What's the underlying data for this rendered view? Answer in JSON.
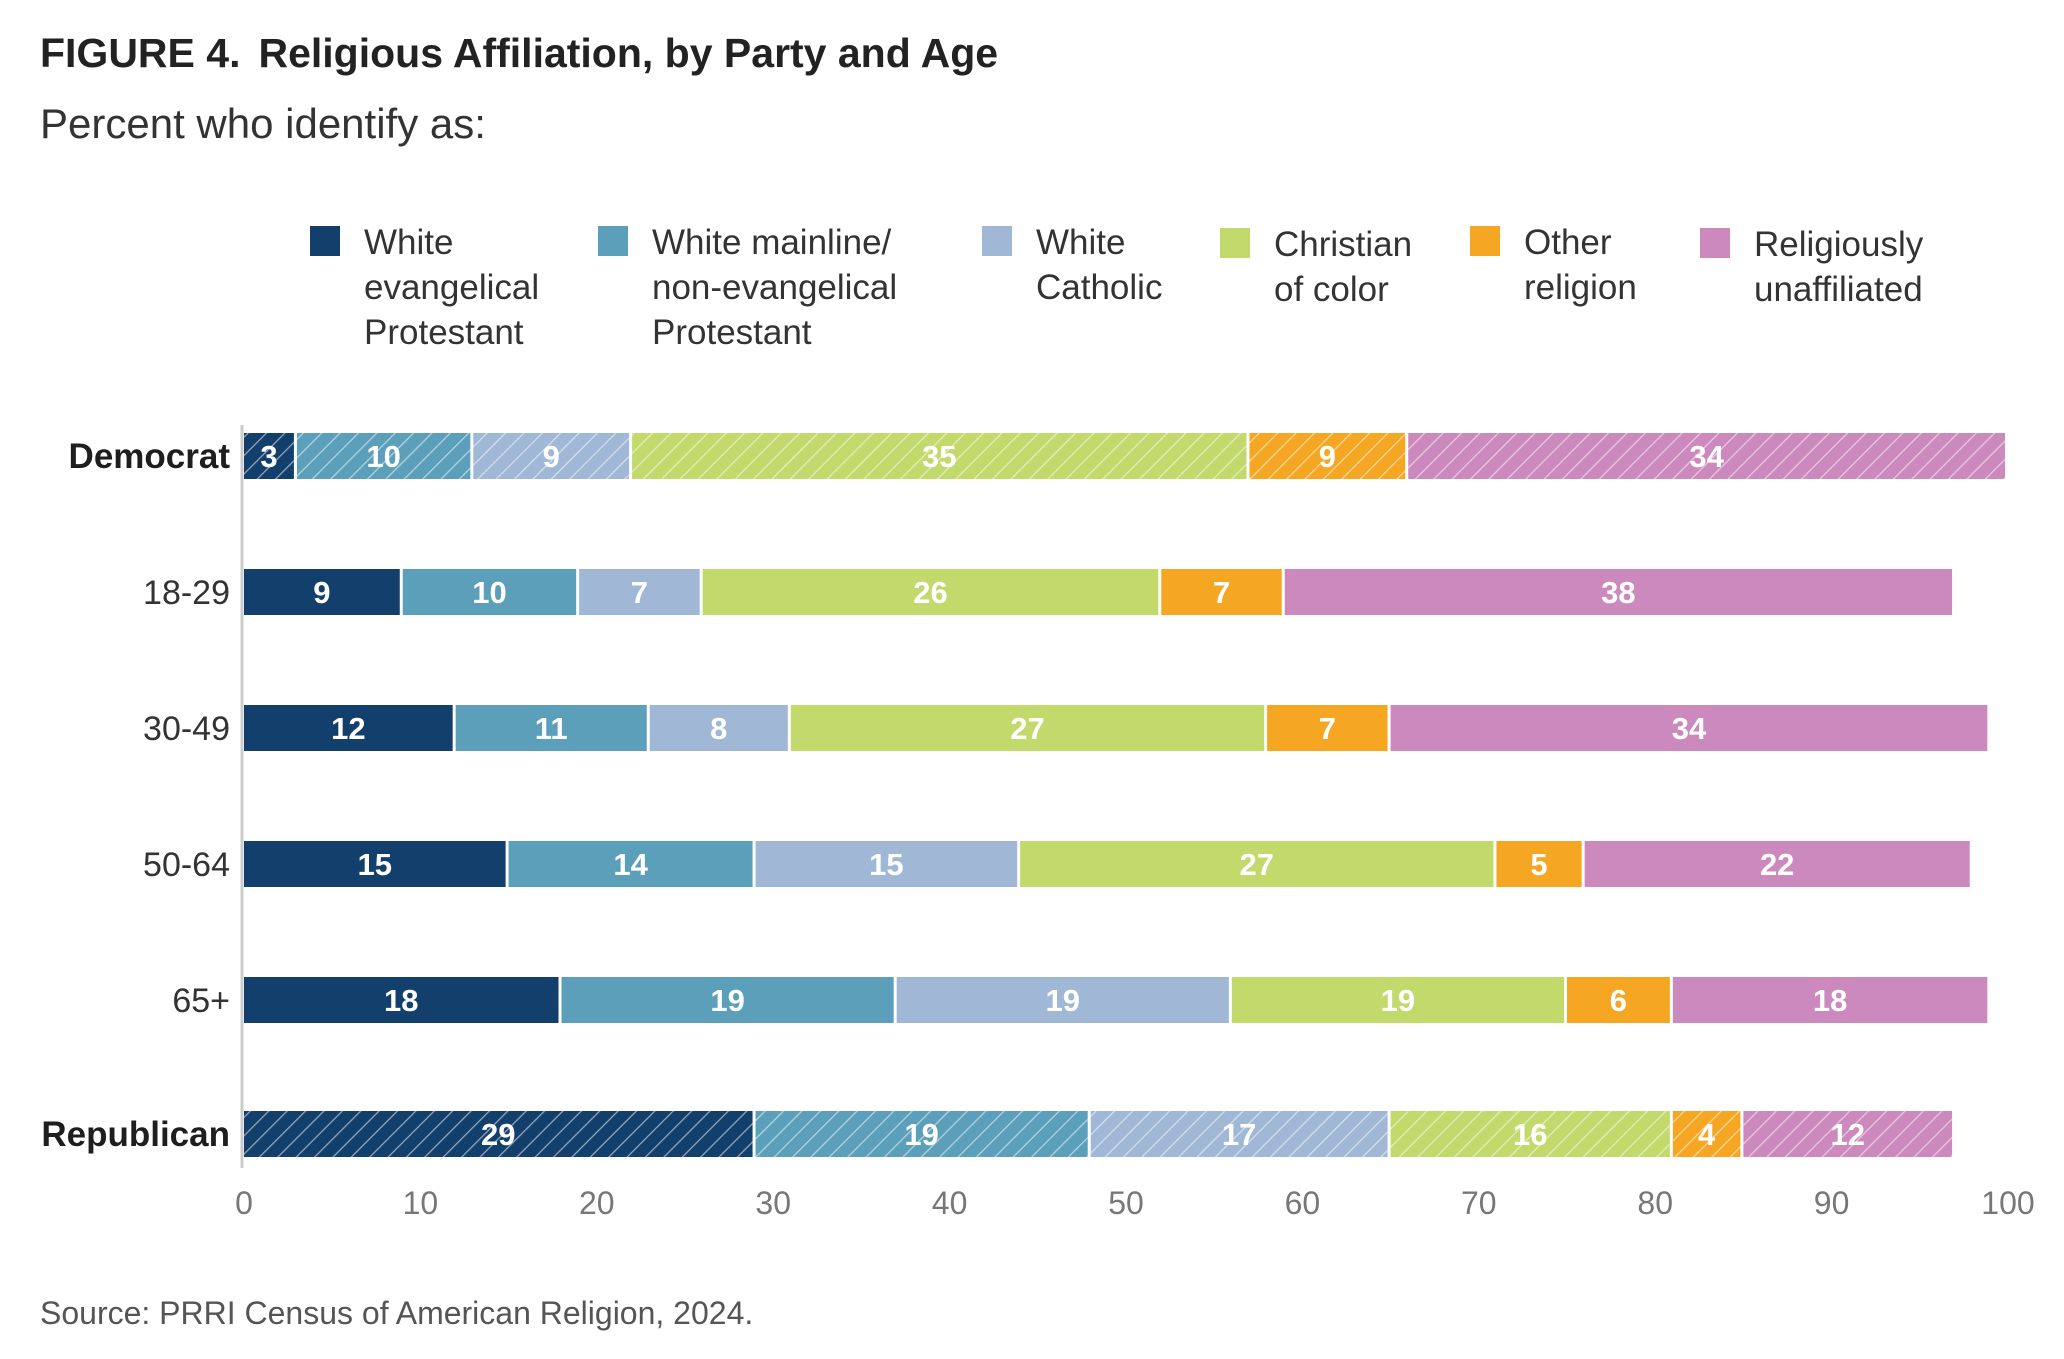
{
  "title_prefix": "FIGURE 4.",
  "title": "Religious Affiliation, by Party and Age",
  "subtitle": "Percent who identify as:",
  "source": "Source: PRRI Census of American Religion, 2024.",
  "colors": {
    "white_evangelical": "#133f6c",
    "white_mainline": "#5b9fba",
    "white_catholic": "#a0b8d5",
    "christian_of_color": "#c2d96b",
    "other_religion": "#f5a623",
    "unaffiliated": "#cb89bd"
  },
  "legend": [
    {
      "label": "White\nevangelical\nProtestant",
      "color": "#133f6c"
    },
    {
      "label": "White mainline/\nnon-evangelical\nProtestant",
      "color": "#5b9fba"
    },
    {
      "label": "White\nCatholic",
      "color": "#a0b8d5"
    },
    {
      "label": "Christian\nof color",
      "color": "#c2d96b"
    },
    {
      "label": "Other\nreligion",
      "color": "#f5a623"
    },
    {
      "label": "Religiously\nunaffiliated",
      "color": "#cb89bd"
    }
  ],
  "chart_data": {
    "type": "bar",
    "orientation": "horizontal",
    "stacked": true,
    "title": "Religious Affiliation, by Party and Age",
    "subtitle": "Percent who identify as:",
    "categories": [
      "Democrat",
      "18-29",
      "30-49",
      "50-64",
      "65+",
      "Republican"
    ],
    "bold_categories": [
      "Democrat",
      "Republican"
    ],
    "hatched_categories": [
      "Democrat",
      "Republican"
    ],
    "series": [
      {
        "name": "White evangelical Protestant",
        "values": [
          3,
          9,
          12,
          15,
          18,
          29
        ]
      },
      {
        "name": "White mainline/ non-evangelical Protestant",
        "values": [
          10,
          10,
          11,
          14,
          19,
          19
        ]
      },
      {
        "name": "White Catholic",
        "values": [
          9,
          7,
          8,
          15,
          19,
          17
        ]
      },
      {
        "name": "Christian of color",
        "values": [
          35,
          26,
          27,
          27,
          19,
          16
        ]
      },
      {
        "name": "Other religion",
        "values": [
          9,
          7,
          7,
          5,
          6,
          4
        ]
      },
      {
        "name": "Religiously unaffiliated",
        "values": [
          34,
          38,
          34,
          22,
          18,
          12
        ]
      }
    ],
    "xlim": [
      0,
      100
    ],
    "xticks": [
      "0",
      "10",
      "20",
      "30",
      "40",
      "50",
      "60",
      "70",
      "80",
      "90",
      "100"
    ],
    "xlabel": "",
    "ylabel": "",
    "legend_position": "top",
    "grid": false
  }
}
